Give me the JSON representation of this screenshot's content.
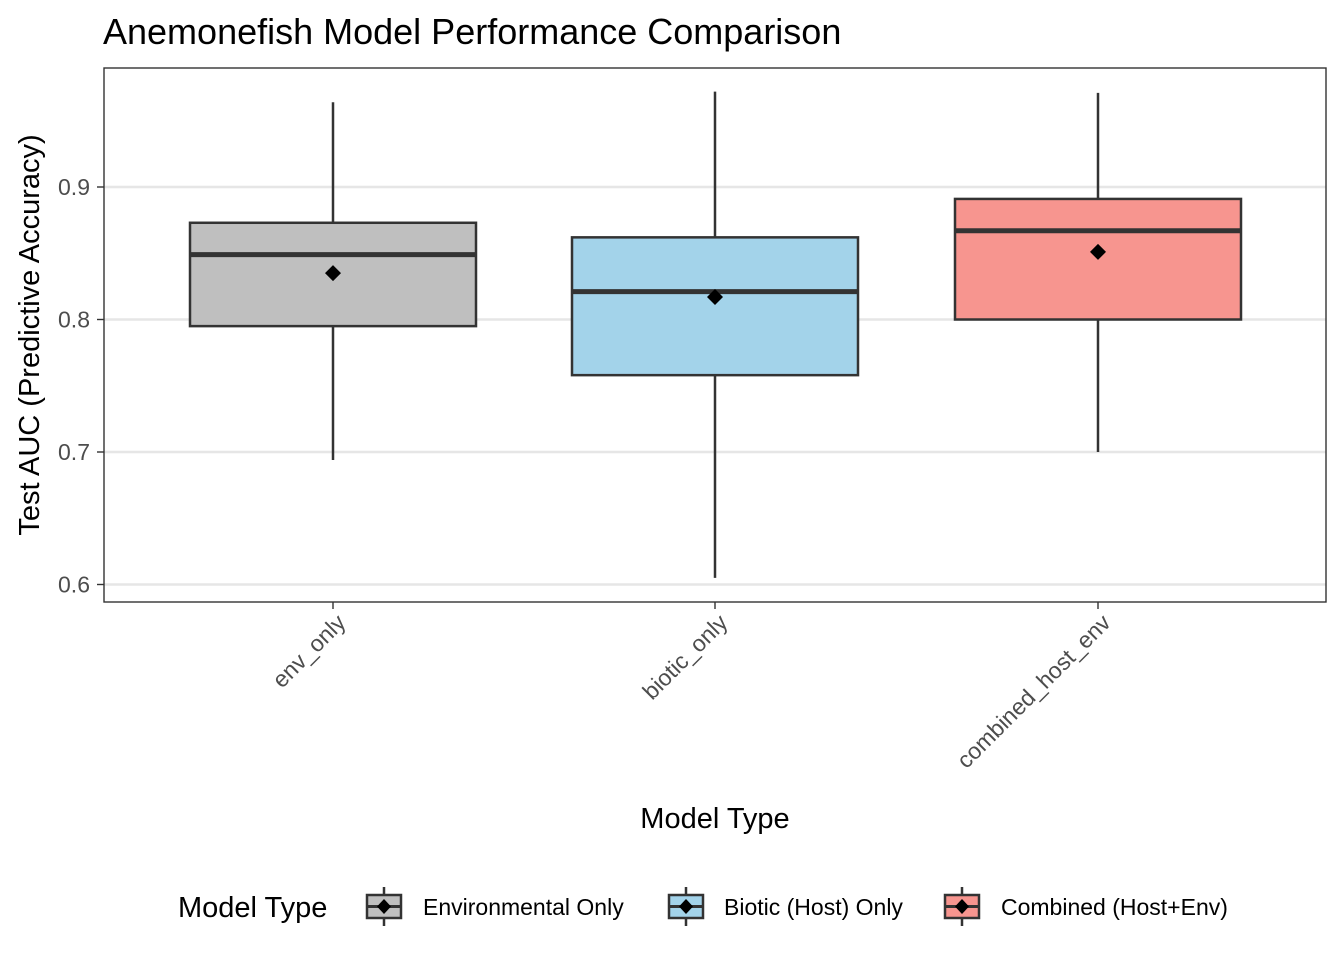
{
  "chart_data": {
    "type": "box",
    "title": "Anemonefish Model Performance Comparison",
    "xlabel": "Model Type",
    "ylabel": "Test AUC (Predictive Accuracy)",
    "ylim": [
      0.587,
      0.99
    ],
    "yticks": [
      0.6,
      0.7,
      0.8,
      0.9
    ],
    "ytick_labels": [
      "0.6",
      "0.7",
      "0.8",
      "0.9"
    ],
    "grid": "horizontal major",
    "categories": [
      "env_only",
      "biotic_only",
      "combined_host_env"
    ],
    "boxes": [
      {
        "category": "env_only",
        "legend": "Environmental Only",
        "color": "#bfbfbf",
        "whisker_low": 0.694,
        "q1": 0.795,
        "median": 0.849,
        "q3": 0.873,
        "whisker_high": 0.964,
        "mean": 0.835
      },
      {
        "category": "biotic_only",
        "legend": "Biotic (Host) Only",
        "color": "#a3d3ea",
        "whisker_low": 0.605,
        "q1": 0.758,
        "median": 0.821,
        "q3": 0.862,
        "whisker_high": 0.972,
        "mean": 0.817
      },
      {
        "category": "combined_host_env",
        "legend": "Combined (Host+Env)",
        "color": "#f7958f",
        "whisker_low": 0.7,
        "q1": 0.8,
        "median": 0.867,
        "q3": 0.891,
        "whisker_high": 0.971,
        "mean": 0.851
      }
    ],
    "legend": {
      "title": "Model Type",
      "position": "bottom",
      "items": [
        "Environmental Only",
        "Biotic (Host) Only",
        "Combined (Host+Env)"
      ]
    }
  }
}
